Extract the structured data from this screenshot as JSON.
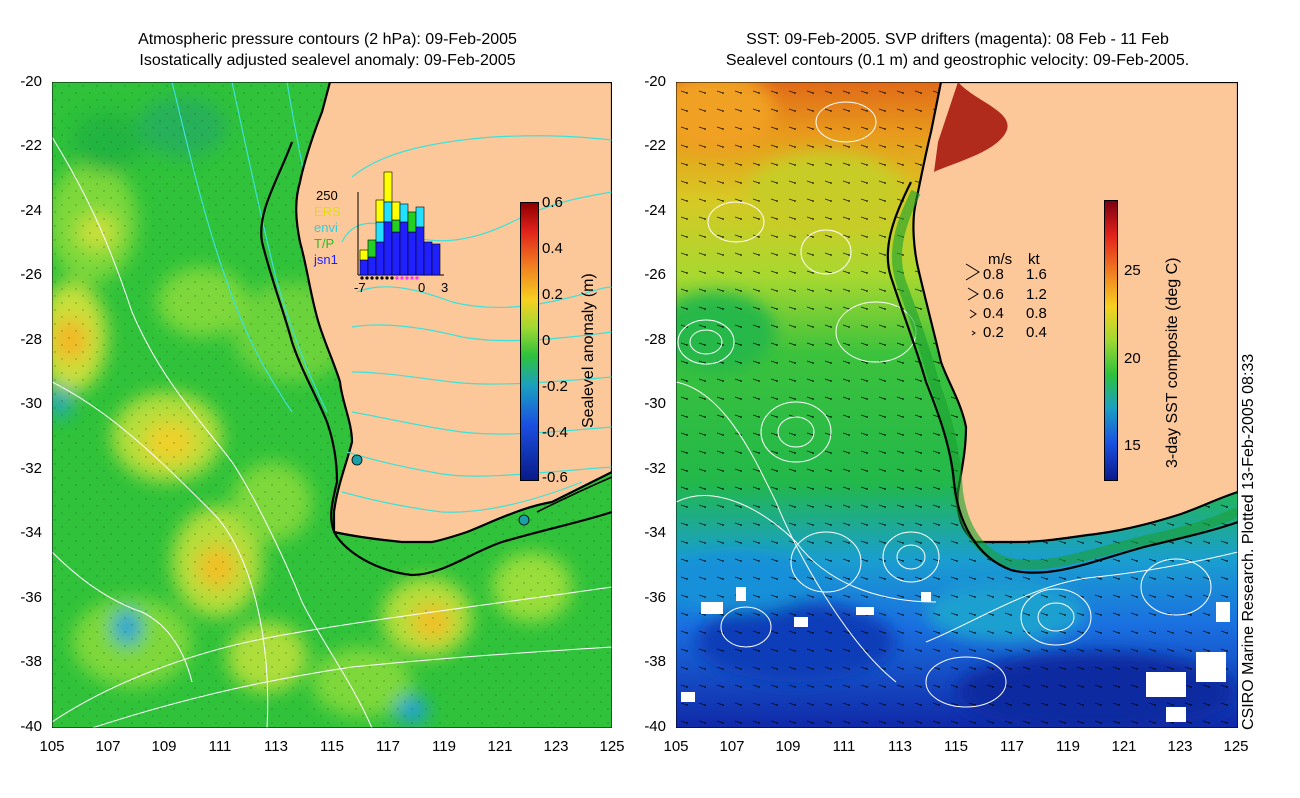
{
  "left": {
    "title_line1": "Atmospheric pressure contours (2 hPa): 09-Feb-2005",
    "title_line2": "Isostatically adjusted sealevel anomaly: 09-Feb-2005",
    "colorbar_label": "Sealevel anomaly (m)",
    "colorbar_ticks": [
      "0.6",
      "0.4",
      "0.2",
      "0",
      "-0.2",
      "-0.4",
      "-0.6"
    ],
    "inset": {
      "y_tick": "250",
      "x_ticks": [
        "-7",
        "0",
        "3"
      ],
      "legend": [
        "ERS",
        "envi",
        "T/P",
        "jsn1"
      ]
    }
  },
  "right": {
    "title_line1": "SST: 09-Feb-2005. SVP drifters (magenta): 08 Feb - 11 Feb",
    "title_line2": "Sealevel contours (0.1 m) and geostrophic velocity: 09-Feb-2005.",
    "colorbar_label": "3-day SST composite (deg C)",
    "colorbar_ticks": [
      "25",
      "20",
      "15"
    ],
    "velocity_legend": {
      "header_ms": "m/s",
      "header_kt": "kt",
      "rows": [
        {
          "ms": "0.8",
          "kt": "1.6"
        },
        {
          "ms": "0.6",
          "kt": "1.2"
        },
        {
          "ms": "0.4",
          "kt": "0.8"
        },
        {
          "ms": "0.2",
          "kt": "0.4"
        }
      ]
    }
  },
  "lat_ticks": [
    "-20",
    "-22",
    "-24",
    "-26",
    "-28",
    "-30",
    "-32",
    "-34",
    "-36",
    "-38",
    "-40"
  ],
  "lon_ticks": [
    "105",
    "107",
    "109",
    "111",
    "113",
    "115",
    "117",
    "119",
    "121",
    "123",
    "125"
  ],
  "credit": "CSIRO Marine Research. Plotted 13-Feb-2005 08:33",
  "colors": {
    "land": "#fcc89a",
    "ocean_green": "#2fc23a",
    "contour_cyan": "#3fe0d8",
    "contour_white": "#ffffff"
  }
}
